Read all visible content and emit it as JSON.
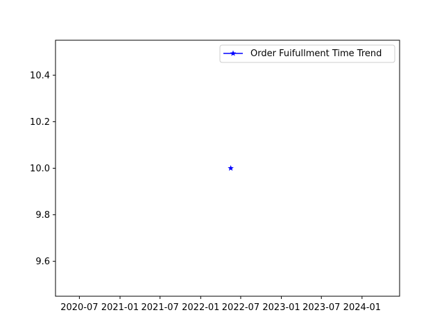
{
  "chart_data": {
    "type": "line",
    "title": "",
    "xlabel": "",
    "ylabel": "",
    "x_tick_labels": [
      "2020-07",
      "2021-01",
      "2021-07",
      "2022-01",
      "2022-07",
      "2023-01",
      "2023-07",
      "2024-01"
    ],
    "y_tick_labels": [
      "9.6",
      "9.8",
      "10.0",
      "10.2",
      "10.4"
    ],
    "y_ticks": [
      9.6,
      9.8,
      10.0,
      10.2,
      10.4
    ],
    "xlim": [
      "2020-03-15",
      "2024-06-19"
    ],
    "ylim": [
      9.45,
      10.55
    ],
    "grid": false,
    "legend_position": "upper-right",
    "series": [
      {
        "name": "Order Fuifullment Time Trend",
        "color": "#0000ff",
        "marker": "star",
        "x": [
          "2022-05-17"
        ],
        "values": [
          10.0
        ]
      }
    ]
  }
}
